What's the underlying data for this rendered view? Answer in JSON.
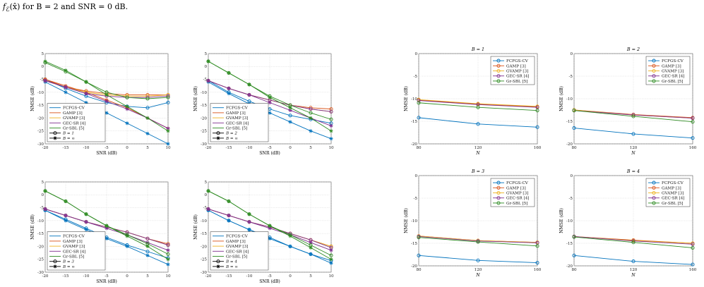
{
  "caption": {
    "func": "f",
    "sub": "ℰ",
    "arg": "(x̂)",
    "rest": " for B = 2 and SNR = 0 dB."
  },
  "colors": {
    "FCFGS-CV": "#0072BD",
    "GAMP [3]": "#D95319",
    "GVAMP [3]": "#EDB120",
    "GEC-SR [4]": "#7E2F8E",
    "Gr-SBL [5]": "#2E8B22",
    "B1": "#000000"
  },
  "chart_data": [
    {
      "type": "line",
      "title": "",
      "xlabel": "SNR (dB)",
      "ylabel": "NMSE (dB)",
      "xlim": [
        -20,
        10
      ],
      "ylim": [
        -30,
        5
      ],
      "xticks": [
        -20,
        -15,
        -10,
        -5,
        0,
        5,
        10
      ],
      "yticks": [
        5,
        0,
        -5,
        -10,
        -15,
        -20,
        -25,
        -30
      ],
      "grid": true,
      "legend_position": "bottom-left",
      "legend": [
        "FCFGS-CV",
        "GAMP [3]",
        "GVAMP [3]",
        "GEC-SR [4]",
        "Gr-SBL [5]",
        "B = 1",
        "B = ∞"
      ],
      "x": [
        -20,
        -15,
        -10,
        -5,
        0,
        5,
        10
      ],
      "series": [
        {
          "name": "FCFGS-CV",
          "line": "finite",
          "values": [
            -5,
            -8.5,
            -11.5,
            -14,
            -15.5,
            -16,
            -14
          ]
        },
        {
          "name": "FCFGS-CV",
          "line": "infinite",
          "values": [
            -6,
            -10,
            -14,
            -18,
            -22,
            -26,
            -30
          ]
        },
        {
          "name": "GAMP [3]",
          "line": "finite",
          "values": [
            -5,
            -8,
            -9.5,
            -10.5,
            -11,
            -11,
            -11
          ]
        },
        {
          "name": "GAMP [3]",
          "line": "infinite",
          "values": [
            -5,
            -7.5,
            -10,
            -13,
            -16,
            -20,
            -24
          ]
        },
        {
          "name": "GVAMP [3]",
          "line": "finite",
          "values": [
            -5.5,
            -8,
            -10,
            -11,
            -11.5,
            -11.5,
            -11
          ]
        },
        {
          "name": "GEC-SR [4]",
          "line": "finite",
          "values": [
            -5.5,
            -8,
            -10.5,
            -11.5,
            -12,
            -12,
            -11.5
          ]
        },
        {
          "name": "GEC-SR [4]",
          "line": "infinite",
          "values": [
            -5.5,
            -8,
            -10.5,
            -13.5,
            -16.5,
            -20,
            -24
          ]
        },
        {
          "name": "Gr-SBL [5]",
          "line": "finite",
          "values": [
            1.5,
            -2,
            -6,
            -10,
            -12,
            -12.5,
            -12
          ]
        },
        {
          "name": "Gr-SBL [5]",
          "line": "infinite",
          "values": [
            2,
            -1.5,
            -6,
            -11,
            -15.5,
            -20,
            -25
          ]
        }
      ]
    },
    {
      "type": "line",
      "title": "",
      "xlabel": "SNR (dB)",
      "ylabel": "NMSE (dB)",
      "xlim": [
        -20,
        10
      ],
      "ylim": [
        -30,
        5
      ],
      "xticks": [
        -20,
        -15,
        -10,
        -5,
        0,
        5,
        10
      ],
      "yticks": [
        5,
        0,
        -5,
        -10,
        -15,
        -20,
        -25,
        -30
      ],
      "grid": true,
      "legend_position": "bottom-left",
      "legend": [
        "FCFGS-CV",
        "GAMP [3]",
        "GVAMP [3]",
        "GEC-SR [4]",
        "Gr-SBL [5]",
        "B = 2",
        "B = ∞"
      ],
      "x": [
        -20,
        -15,
        -10,
        -5,
        0,
        5,
        10
      ],
      "series": [
        {
          "name": "FCFGS-CV",
          "line": "finite",
          "values": [
            -5.5,
            -10,
            -13.5,
            -16.5,
            -19,
            -20.5,
            -22
          ]
        },
        {
          "name": "FCFGS-CV",
          "line": "infinite",
          "values": [
            -6,
            -10.5,
            -14.5,
            -18,
            -21.5,
            -25,
            -28
          ]
        },
        {
          "name": "GAMP [3]",
          "line": "finite",
          "values": [
            -5.5,
            -8.5,
            -11,
            -13,
            -15,
            -16,
            -16.5
          ]
        },
        {
          "name": "GVAMP [3]",
          "line": "finite",
          "values": [
            -5.5,
            -8.5,
            -11,
            -13,
            -15,
            -16.5,
            -17.5
          ]
        },
        {
          "name": "GEC-SR [4]",
          "line": "finite",
          "values": [
            -5.5,
            -8.5,
            -11,
            -13,
            -15,
            -16.5,
            -17.5
          ]
        },
        {
          "name": "GEC-SR [4]",
          "line": "infinite",
          "values": [
            -5.5,
            -8.5,
            -11,
            -14,
            -17,
            -20,
            -23
          ]
        },
        {
          "name": "Gr-SBL [5]",
          "line": "finite",
          "values": [
            2,
            -2.5,
            -7,
            -11.5,
            -15,
            -18,
            -20.5
          ]
        },
        {
          "name": "Gr-SBL [5]",
          "line": "infinite",
          "values": [
            2,
            -2.5,
            -7,
            -12,
            -16,
            -20,
            -25
          ]
        }
      ]
    },
    {
      "type": "line",
      "title": "",
      "xlabel": "SNR (dB)",
      "ylabel": "NMSE (dB)",
      "xlim": [
        -20,
        10
      ],
      "ylim": [
        -30,
        5
      ],
      "xticks": [
        -20,
        -15,
        -10,
        -5,
        0,
        5,
        10
      ],
      "yticks": [
        5,
        0,
        -5,
        -10,
        -15,
        -20,
        -25,
        -30
      ],
      "grid": true,
      "legend_position": "bottom-left",
      "legend": [
        "FCFGS-CV",
        "GAMP [3]",
        "GVAMP [3]",
        "GEC-SR [4]",
        "Gr-SBL [5]",
        "B = 3",
        "B = ∞"
      ],
      "x": [
        -20,
        -15,
        -10,
        -5,
        0,
        5,
        10
      ],
      "series": [
        {
          "name": "FCFGS-CV",
          "line": "finite",
          "values": [
            -6,
            -9.5,
            -13,
            -16.5,
            -19.5,
            -22,
            -24.5
          ]
        },
        {
          "name": "FCFGS-CV",
          "line": "infinite",
          "values": [
            -6,
            -10,
            -13.5,
            -17,
            -20,
            -23.5,
            -27
          ]
        },
        {
          "name": "GAMP [3]",
          "line": "finite",
          "values": [
            -5.5,
            -8,
            -10.5,
            -12.5,
            -14.5,
            -17,
            -19
          ]
        },
        {
          "name": "GVAMP [3]",
          "line": "finite",
          "values": [
            -5.5,
            -8,
            -10.5,
            -12.5,
            -14.5,
            -17,
            -19.5
          ]
        },
        {
          "name": "GEC-SR [4]",
          "line": "finite",
          "values": [
            -5.5,
            -8,
            -10.5,
            -12.5,
            -14.5,
            -17,
            -19.5
          ]
        },
        {
          "name": "GEC-SR [4]",
          "line": "infinite",
          "values": [
            -5.5,
            -8,
            -10.5,
            -13,
            -15.5,
            -18.5,
            -21.5
          ]
        },
        {
          "name": "Gr-SBL [5]",
          "line": "finite",
          "values": [
            1.5,
            -2.5,
            -7.5,
            -12,
            -15.5,
            -19,
            -23
          ]
        },
        {
          "name": "Gr-SBL [5]",
          "line": "infinite",
          "values": [
            1.5,
            -2.5,
            -7.5,
            -12,
            -16,
            -20,
            -25
          ]
        }
      ]
    },
    {
      "type": "line",
      "title": "",
      "xlabel": "SNR (dB)",
      "ylabel": "NMSE (dB)",
      "xlim": [
        -20,
        10
      ],
      "ylim": [
        -30,
        5
      ],
      "xticks": [
        -20,
        -15,
        -10,
        -5,
        0,
        5,
        10
      ],
      "yticks": [
        5,
        0,
        -5,
        -10,
        -15,
        -20,
        -25,
        -30
      ],
      "grid": true,
      "legend_position": "bottom-left",
      "legend": [
        "FCFGS-CV",
        "GAMP [3]",
        "GVAMP [3]",
        "GEC-SR [4]",
        "Gr-SBL [5]",
        "B = 4",
        "B = ∞"
      ],
      "x": [
        -20,
        -15,
        -10,
        -5,
        0,
        5,
        10
      ],
      "series": [
        {
          "name": "FCFGS-CV",
          "line": "finite",
          "values": [
            -6,
            -10,
            -13.5,
            -16.5,
            -20,
            -23,
            -25.5
          ]
        },
        {
          "name": "FCFGS-CV",
          "line": "infinite",
          "values": [
            -6,
            -10,
            -13.5,
            -17,
            -20,
            -23,
            -26.5
          ]
        },
        {
          "name": "GAMP [3]",
          "line": "finite",
          "values": [
            -5.5,
            -8,
            -10.5,
            -12.5,
            -15,
            -17.5,
            -20
          ]
        },
        {
          "name": "GVAMP [3]",
          "line": "finite",
          "values": [
            -5.5,
            -8,
            -10.5,
            -12.5,
            -15,
            -17.5,
            -20
          ]
        },
        {
          "name": "GEC-SR [4]",
          "line": "finite",
          "values": [
            -5.5,
            -8,
            -10.5,
            -12.5,
            -15,
            -17.5,
            -20.5
          ]
        },
        {
          "name": "GEC-SR [4]",
          "line": "infinite",
          "values": [
            -5.5,
            -8,
            -10.5,
            -13,
            -15.5,
            -18.5,
            -21.5
          ]
        },
        {
          "name": "Gr-SBL [5]",
          "line": "finite",
          "values": [
            1.5,
            -2.5,
            -7.5,
            -12,
            -15.5,
            -19.5,
            -23.5
          ]
        },
        {
          "name": "Gr-SBL [5]",
          "line": "infinite",
          "values": [
            1.5,
            -2.5,
            -7.5,
            -12,
            -16,
            -20.5,
            -25
          ]
        }
      ]
    },
    {
      "type": "line",
      "title": "B = 1",
      "xlabel": "N",
      "ylabel": "NMSE (dB)",
      "xlim": [
        80,
        160
      ],
      "ylim": [
        -20,
        0
      ],
      "xticks": [
        80,
        120,
        160
      ],
      "yticks": [
        0,
        -5,
        -10,
        -15,
        -20
      ],
      "grid": true,
      "legend_position": "top-right",
      "legend": [
        "FCFGS-CV",
        "GAMP [3]",
        "GVAMP [3]",
        "GEC-SR [4]",
        "Gr-SBL [5]"
      ],
      "x": [
        80,
        120,
        160
      ],
      "series": [
        {
          "name": "FCFGS-CV",
          "values": [
            -14.2,
            -15.6,
            -16.3
          ]
        },
        {
          "name": "GAMP [3]",
          "values": [
            -10.3,
            -11.2,
            -11.8
          ]
        },
        {
          "name": "GVAMP [3]",
          "values": [
            -10.2,
            -11.1,
            -11.7
          ]
        },
        {
          "name": "GEC-SR [4]",
          "values": [
            -10.4,
            -11.3,
            -11.9
          ]
        },
        {
          "name": "Gr-SBL [5]",
          "values": [
            -10.9,
            -11.9,
            -12.6
          ]
        }
      ]
    },
    {
      "type": "line",
      "title": "B = 2",
      "xlabel": "N",
      "ylabel": "NMSE (dB)",
      "xlim": [
        80,
        160
      ],
      "ylim": [
        -20,
        0
      ],
      "xticks": [
        80,
        120,
        160
      ],
      "yticks": [
        0,
        -5,
        -10,
        -15,
        -20
      ],
      "grid": true,
      "legend_position": "top-right",
      "legend": [
        "FCFGS-CV",
        "GAMP [3]",
        "GVAMP [3]",
        "GEC-SR [4]",
        "Gr-SBL [5]"
      ],
      "x": [
        80,
        120,
        160
      ],
      "series": [
        {
          "name": "FCFGS-CV",
          "values": [
            -16.5,
            -17.8,
            -18.7
          ]
        },
        {
          "name": "GAMP [3]",
          "values": [
            -12.5,
            -13.5,
            -14.2
          ]
        },
        {
          "name": "GVAMP [3]",
          "values": [
            -12.5,
            -13.6,
            -14.3
          ]
        },
        {
          "name": "GEC-SR [4]",
          "values": [
            -12.6,
            -13.6,
            -14.3
          ]
        },
        {
          "name": "Gr-SBL [5]",
          "values": [
            -12.6,
            -13.9,
            -15.1
          ]
        }
      ]
    },
    {
      "type": "line",
      "title": "B = 3",
      "xlabel": "N",
      "ylabel": "NMSE (dB)",
      "xlim": [
        80,
        160
      ],
      "ylim": [
        -20,
        0
      ],
      "xticks": [
        80,
        120,
        160
      ],
      "yticks": [
        0,
        -5,
        -10,
        -15,
        -20
      ],
      "grid": true,
      "legend_position": "top-right",
      "legend": [
        "FCFGS-CV",
        "GAMP [3]",
        "GVAMP [3]",
        "GEC-SR [4]",
        "Gr-SBL [5]"
      ],
      "x": [
        80,
        120,
        160
      ],
      "series": [
        {
          "name": "FCFGS-CV",
          "values": [
            -17.7,
            -18.8,
            -19.3
          ]
        },
        {
          "name": "GAMP [3]",
          "values": [
            -13.4,
            -14.4,
            -14.8
          ]
        },
        {
          "name": "GVAMP [3]",
          "values": [
            -13.4,
            -14.4,
            -14.8
          ]
        },
        {
          "name": "GEC-SR [4]",
          "values": [
            -13.5,
            -14.5,
            -14.9
          ]
        },
        {
          "name": "Gr-SBL [5]",
          "values": [
            -13.7,
            -14.7,
            -15.6
          ]
        }
      ]
    },
    {
      "type": "line",
      "title": "B = 4",
      "xlabel": "N",
      "ylabel": "NMSE (dB)",
      "xlim": [
        80,
        160
      ],
      "ylim": [
        -20,
        0
      ],
      "xticks": [
        80,
        120,
        160
      ],
      "yticks": [
        0,
        -5,
        -10,
        -15,
        -20
      ],
      "grid": true,
      "legend_position": "top-right",
      "legend": [
        "FCFGS-CV",
        "GAMP [3]",
        "GVAMP [3]",
        "GEC-SR [4]",
        "Gr-SBL [5]"
      ],
      "x": [
        80,
        120,
        160
      ],
      "series": [
        {
          "name": "FCFGS-CV",
          "values": [
            -17.7,
            -19.0,
            -19.7
          ]
        },
        {
          "name": "GAMP [3]",
          "values": [
            -13.5,
            -14.3,
            -15.0
          ]
        },
        {
          "name": "GVAMP [3]",
          "values": [
            -13.5,
            -14.4,
            -15.0
          ]
        },
        {
          "name": "GEC-SR [4]",
          "values": [
            -13.5,
            -14.5,
            -15.2
          ]
        },
        {
          "name": "Gr-SBL [5]",
          "values": [
            -13.6,
            -14.8,
            -16.0
          ]
        }
      ]
    }
  ]
}
